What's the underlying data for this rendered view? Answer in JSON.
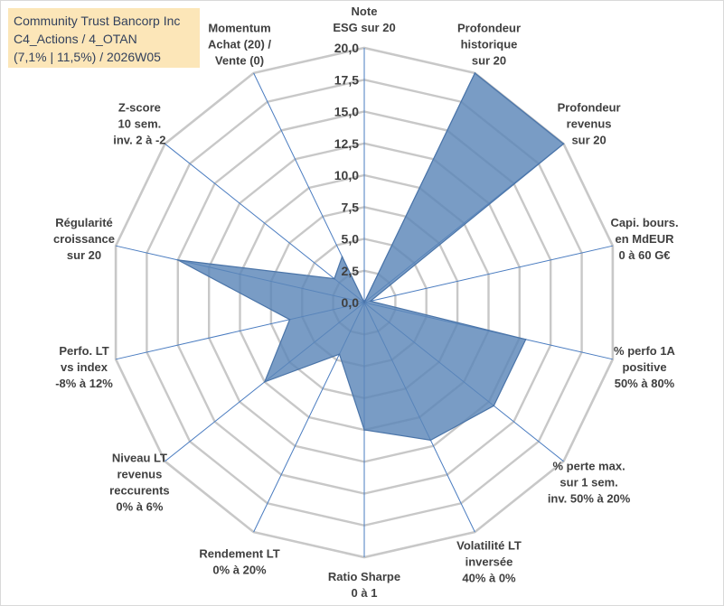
{
  "title_box": {
    "line1": "Community Trust Bancorp Inc",
    "line2": "C4_Actions / 4_OTAN",
    "line3": "(7,1% | 11,5%) / 2026W05"
  },
  "colors": {
    "fill": "#5b86b8",
    "outline": "#4a74a8",
    "grid": "#c8c8c8",
    "spoke": "#4a7cc0",
    "title_bg": "#fce6b8"
  },
  "chart_data": {
    "type": "radar",
    "rmin": 0,
    "rmax": 20,
    "tick_step": 2.5,
    "grid": true,
    "tick_labels": [
      "0,0",
      "2,5",
      "5,0",
      "7,5",
      "10,0",
      "12,5",
      "15,0",
      "17,5",
      "20,0"
    ],
    "axes": [
      {
        "label": [
          "Note",
          "ESG sur 20"
        ],
        "value": 0
      },
      {
        "label": [
          "Profondeur",
          "historique",
          "sur 20"
        ],
        "value": 20
      },
      {
        "label": [
          "Profondeur",
          "revenus",
          "sur 20"
        ],
        "value": 20
      },
      {
        "label": [
          "Capi. bours.",
          "en MdEUR",
          "0 à 60 G€"
        ],
        "value": 0.5
      },
      {
        "label": [
          "% perfo 1A",
          "positive",
          "50% à 80%"
        ],
        "value": 13
      },
      {
        "label": [
          "% perte max.",
          "sur 1 sem.",
          "inv. 50% à 20%"
        ],
        "value": 13
      },
      {
        "label": [
          "Volatilité LT",
          "inversée",
          "40% à 0%"
        ],
        "value": 12
      },
      {
        "label": [
          "Ratio Sharpe",
          "0 à 1"
        ],
        "value": 10
      },
      {
        "label": [
          "Rendement LT",
          "0% à 20%"
        ],
        "value": 4.5
      },
      {
        "label": [
          "Niveau LT",
          "revenus",
          "reccurents",
          "0% à 6%"
        ],
        "value": 10
      },
      {
        "label": [
          "Perfo. LT",
          "vs index",
          "-8% à 12%"
        ],
        "value": 6
      },
      {
        "label": [
          "Régularité",
          "croissance",
          "sur 20"
        ],
        "value": 15
      },
      {
        "label": [
          "Z-score",
          "10 sem.",
          "inv. 2 à -2"
        ],
        "value": 3
      },
      {
        "label": [
          "Momentum",
          "Achat (20) /",
          "Vente (0)"
        ],
        "value": 4
      }
    ]
  }
}
